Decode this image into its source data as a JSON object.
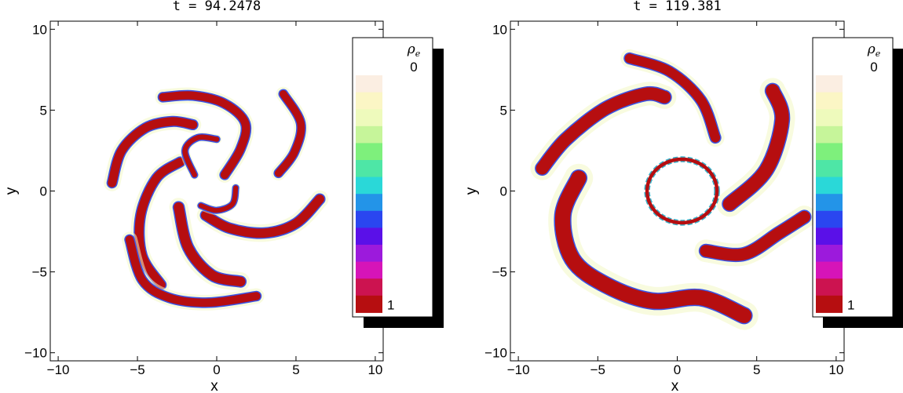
{
  "chart_data": [
    {
      "type": "heatmap",
      "title": "t = 94.2478",
      "xlabel": "x",
      "ylabel": "y",
      "xlim": [
        -10.5,
        10.5
      ],
      "ylim": [
        -10.5,
        10.5
      ],
      "xticks": [
        -10,
        -5,
        0,
        5,
        10
      ],
      "yticks": [
        -10,
        -5,
        0,
        5,
        10
      ],
      "grid": false,
      "colorbar": {
        "label": "ρe",
        "top_tick": "0",
        "bottom_tick": "1",
        "placement": "right"
      },
      "arms": [
        {
          "path": [
            [
              -6.6,
              0.5
            ],
            [
              -6.0,
              2.5
            ],
            [
              -4.5,
              3.9
            ],
            [
              -2.8,
              4.3
            ],
            [
              -1.5,
              4.1
            ]
          ],
          "width": 0.55
        },
        {
          "path": [
            [
              -3.5,
              -5.8
            ],
            [
              -4.7,
              -4.0
            ],
            [
              -4.8,
              -1.5
            ],
            [
              -3.8,
              0.8
            ],
            [
              -2.3,
              1.8
            ]
          ],
          "width": 0.55
        },
        {
          "path": [
            [
              4.2,
              6.0
            ],
            [
              5.3,
              4.2
            ],
            [
              4.9,
              2.4
            ],
            [
              3.9,
              1.1
            ]
          ],
          "width": 0.48
        },
        {
          "path": [
            [
              -3.4,
              5.8
            ],
            [
              -1.5,
              5.9
            ],
            [
              0.5,
              5.4
            ],
            [
              1.8,
              4.2
            ],
            [
              1.5,
              2.6
            ],
            [
              0.5,
              1.0
            ]
          ],
          "width": 0.52
        },
        {
          "path": [
            [
              -2.4,
              -1.0
            ],
            [
              -1.8,
              -3.5
            ],
            [
              -0.3,
              -5.2
            ],
            [
              1.5,
              -5.6
            ]
          ],
          "width": 0.62
        },
        {
          "path": [
            [
              -0.7,
              -1.5
            ],
            [
              0.8,
              -2.3
            ],
            [
              3.0,
              -2.6
            ],
            [
              5.0,
              -2.0
            ],
            [
              6.5,
              -0.5
            ]
          ],
          "width": 0.58
        },
        {
          "path": [
            [
              -5.5,
              -3.0
            ],
            [
              -4.7,
              -5.5
            ],
            [
              -3.0,
              -6.6
            ],
            [
              -0.5,
              -6.9
            ],
            [
              2.5,
              -6.5
            ]
          ],
          "width": 0.52
        },
        {
          "path": [
            [
              -1.4,
              1.0
            ],
            [
              -2.0,
              2.5
            ],
            [
              -1.2,
              3.3
            ],
            [
              0.0,
              3.2
            ]
          ],
          "width": 0.32
        },
        {
          "path": [
            [
              1.2,
              0.2
            ],
            [
              1.0,
              -0.8
            ],
            [
              0.0,
              -1.2
            ],
            [
              -1.0,
              -0.9
            ]
          ],
          "width": 0.3
        }
      ]
    },
    {
      "type": "heatmap",
      "title": "t = 119.381",
      "xlabel": "x",
      "ylabel": "y",
      "xlim": [
        -10.5,
        10.5
      ],
      "ylim": [
        -10.5,
        10.5
      ],
      "xticks": [
        -10,
        -5,
        0,
        5,
        10
      ],
      "yticks": [
        -10,
        -5,
        0,
        5,
        10
      ],
      "grid": false,
      "colorbar": {
        "label": "ρe",
        "top_tick": "0",
        "bottom_tick": "1",
        "placement": "right"
      },
      "arms": [
        {
          "path": [
            [
              -8.5,
              1.4
            ],
            [
              -7.0,
              3.2
            ],
            [
              -4.5,
              5.1
            ],
            [
              -2.0,
              6.0
            ],
            [
              -0.8,
              5.8
            ]
          ],
          "width": 0.78
        },
        {
          "path": [
            [
              -6.2,
              0.8
            ],
            [
              -7.2,
              -1.5
            ],
            [
              -6.6,
              -4.2
            ],
            [
              -4.5,
              -5.8
            ],
            [
              -1.6,
              -6.8
            ],
            [
              1.5,
              -6.6
            ],
            [
              4.2,
              -7.7
            ]
          ],
          "width": 0.95
        },
        {
          "path": [
            [
              -3.0,
              8.2
            ],
            [
              -0.5,
              7.4
            ],
            [
              1.5,
              5.6
            ],
            [
              2.4,
              3.3
            ]
          ],
          "width": 0.6
        },
        {
          "path": [
            [
              6.0,
              6.2
            ],
            [
              6.6,
              4.4
            ],
            [
              5.6,
              1.3
            ],
            [
              3.3,
              -0.8
            ]
          ],
          "width": 0.85
        },
        {
          "path": [
            [
              1.8,
              -3.7
            ],
            [
              4.2,
              -3.9
            ],
            [
              6.4,
              -2.6
            ],
            [
              8.0,
              -1.6
            ]
          ],
          "width": 0.75
        }
      ],
      "ring": {
        "cx": 0.3,
        "cy": 0.0,
        "rx": 2.2,
        "ry": 2.0,
        "width": 0.22
      }
    }
  ]
}
